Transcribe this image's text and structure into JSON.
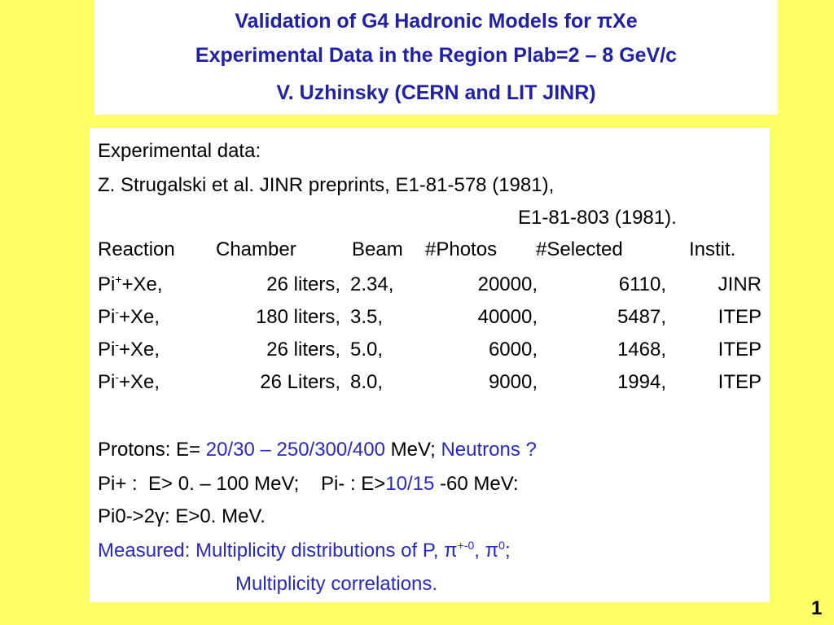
{
  "title": {
    "line1": "Validation of G4 Hadronic Models for πXe",
    "line2": "Experimental Data in the Region Plab=2 – 8 GeV/c",
    "author": "V. Uzhinsky (CERN and LIT JINR)"
  },
  "body": {
    "heading": "Experimental data:",
    "reference": [
      "Z. Strugalski et al. JINR preprints, E1-81-578 (1981),",
      "E1-81-803 (1981)."
    ],
    "table": {
      "header": [
        "Reaction",
        "Chamber",
        "Beam",
        "#Photos",
        "#Selected",
        "Instit."
      ],
      "rows": [
        {
          "particle": "Pi",
          "charge": "+",
          "target": "+Xe,",
          "cells": [
            "26 liters,",
            "2.34,",
            "20000,",
            "6110,",
            "JINR"
          ]
        },
        {
          "particle": "Pi",
          "charge": "-",
          "target": "+Xe,",
          "cells": [
            "180 liters,",
            "3.5,",
            "40000,",
            "5487,",
            "ITEP"
          ]
        },
        {
          "particle": "Pi",
          "charge": "-",
          "target": "+Xe,",
          "cells": [
            "26 liters,",
            "5.0,",
            "6000,",
            "1468,",
            "ITEP"
          ]
        },
        {
          "particle": "Pi",
          "charge": "-",
          "target": "+Xe,",
          "cells": [
            "26 Liters,",
            "8.0,",
            "9000,",
            "1994,",
            "ITEP"
          ]
        }
      ]
    },
    "protons": [
      "Protons: E=",
      "20/30 – 250/300/400",
      "MeV;",
      "Neutrons ?"
    ],
    "pions": [
      "Pi+ :  E> 0. – 100 MeV;",
      "Pi- : E>",
      "10/15",
      "-60 MeV:"
    ],
    "pi0": "Pi0->2γ: E>0. MeV.",
    "measured": {
      "label": "Measured:",
      "text": "Multiplicity distributions of P, π",
      "sup1": "+-0",
      "mid": ", π",
      "sup2": "0",
      "end": ";",
      "line2": "Multiplicity correlations."
    }
  },
  "page_number": "1"
}
